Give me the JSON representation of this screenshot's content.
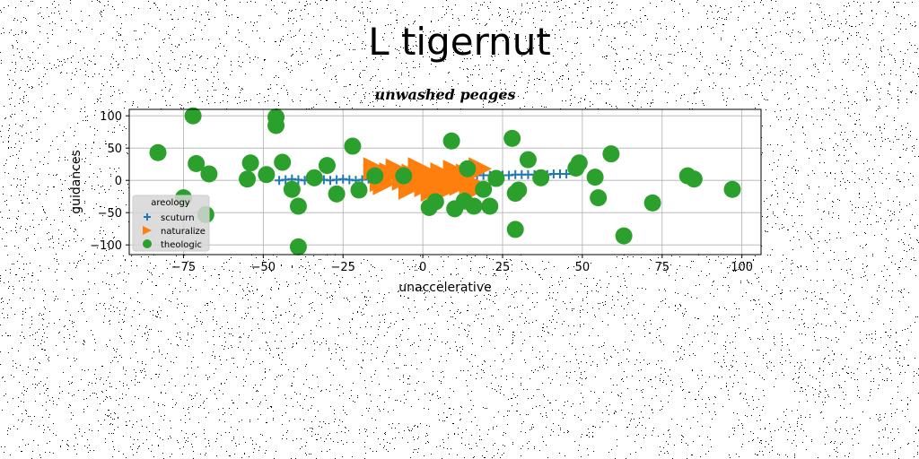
{
  "figure": {
    "suptitle": "L tigernut"
  },
  "chart_data": {
    "type": "scatter",
    "title": "unwashed peages",
    "xlabel": "unaccelerative",
    "ylabel": "guidances",
    "xlim": [
      -92,
      106
    ],
    "ylim": [
      -115,
      110
    ],
    "xticks": [
      -75,
      -50,
      -25,
      0,
      25,
      50,
      75,
      100
    ],
    "yticks": [
      -100,
      -50,
      0,
      50,
      100
    ],
    "grid": true,
    "legend": {
      "title": "areology",
      "placement": "lower-left"
    },
    "series": [
      {
        "name": "scuturn",
        "marker": "plus",
        "color": "#1f77b4",
        "points": [
          [
            -45,
            0
          ],
          [
            -43,
            1
          ],
          [
            -41,
            2
          ],
          [
            -39,
            1
          ],
          [
            -37,
            0
          ],
          [
            -35,
            1
          ],
          [
            -33,
            2
          ],
          [
            -31,
            1
          ],
          [
            -29,
            0
          ],
          [
            -27,
            1
          ],
          [
            -25,
            2
          ],
          [
            -23,
            1
          ],
          [
            -21,
            0
          ],
          [
            -19,
            1
          ],
          [
            -17,
            2
          ],
          [
            -15,
            3
          ],
          [
            -13,
            4
          ],
          [
            -11,
            4
          ],
          [
            -9,
            5
          ],
          [
            -7,
            6
          ],
          [
            -5,
            6
          ],
          [
            -3,
            6
          ],
          [
            -1,
            7
          ],
          [
            1,
            7
          ],
          [
            3,
            6
          ],
          [
            5,
            7
          ],
          [
            7,
            8
          ],
          [
            9,
            8
          ],
          [
            11,
            7
          ],
          [
            13,
            8
          ],
          [
            15,
            8
          ],
          [
            17,
            8
          ],
          [
            19,
            8
          ],
          [
            21,
            8
          ],
          [
            23,
            8
          ],
          [
            25,
            8
          ],
          [
            27,
            8
          ],
          [
            29,
            9
          ],
          [
            31,
            9
          ],
          [
            33,
            9
          ],
          [
            35,
            9
          ],
          [
            37,
            9
          ],
          [
            39,
            9
          ],
          [
            41,
            10
          ],
          [
            43,
            10
          ],
          [
            45,
            10
          ]
        ]
      },
      {
        "name": "naturalize",
        "marker": "triangle-right",
        "color": "#ff7f0e",
        "points": [
          [
            -15,
            18
          ],
          [
            -12,
            -5
          ],
          [
            -10,
            10
          ],
          [
            -8,
            16
          ],
          [
            -6,
            2
          ],
          [
            -4,
            -12
          ],
          [
            -3,
            8
          ],
          [
            -1,
            18
          ],
          [
            1,
            -8
          ],
          [
            3,
            5
          ],
          [
            5,
            -12
          ],
          [
            6,
            10
          ],
          [
            8,
            -2
          ],
          [
            10,
            14
          ],
          [
            12,
            -6
          ],
          [
            14,
            8
          ],
          [
            16,
            -15
          ],
          [
            18,
            18
          ],
          [
            5,
            2
          ],
          [
            -13,
            0
          ],
          [
            11,
            2
          ],
          [
            -2,
            -2
          ],
          [
            9,
            -10
          ],
          [
            15,
            -3
          ],
          [
            3,
            -15
          ]
        ]
      },
      {
        "name": "theologic",
        "marker": "circle",
        "color": "#2ca02c",
        "points": [
          [
            -83,
            43
          ],
          [
            -72,
            100
          ],
          [
            -71,
            26
          ],
          [
            -67,
            10
          ],
          [
            -75,
            -27
          ],
          [
            -68,
            -53
          ],
          [
            -55,
            2
          ],
          [
            -54,
            27
          ],
          [
            -49,
            9
          ],
          [
            -46,
            98
          ],
          [
            -46,
            85
          ],
          [
            -44,
            28
          ],
          [
            -41,
            -14
          ],
          [
            -39,
            -40
          ],
          [
            -39,
            -103
          ],
          [
            -34,
            4
          ],
          [
            -30,
            23
          ],
          [
            -27,
            -21
          ],
          [
            -22,
            53
          ],
          [
            -20,
            -15
          ],
          [
            -15,
            7
          ],
          [
            -6,
            7
          ],
          [
            2,
            -42
          ],
          [
            4,
            -33
          ],
          [
            9,
            61
          ],
          [
            10,
            -44
          ],
          [
            13,
            -32
          ],
          [
            14,
            18
          ],
          [
            16,
            -40
          ],
          [
            19,
            -14
          ],
          [
            21,
            -40
          ],
          [
            23,
            3
          ],
          [
            28,
            65
          ],
          [
            29,
            -76
          ],
          [
            29,
            -20
          ],
          [
            30,
            -15
          ],
          [
            33,
            32
          ],
          [
            37,
            4
          ],
          [
            48,
            19
          ],
          [
            49,
            27
          ],
          [
            54,
            5
          ],
          [
            55,
            -27
          ],
          [
            59,
            41
          ],
          [
            63,
            -86
          ],
          [
            72,
            -35
          ],
          [
            83,
            7
          ],
          [
            85,
            2
          ],
          [
            97,
            -14
          ]
        ]
      }
    ]
  }
}
